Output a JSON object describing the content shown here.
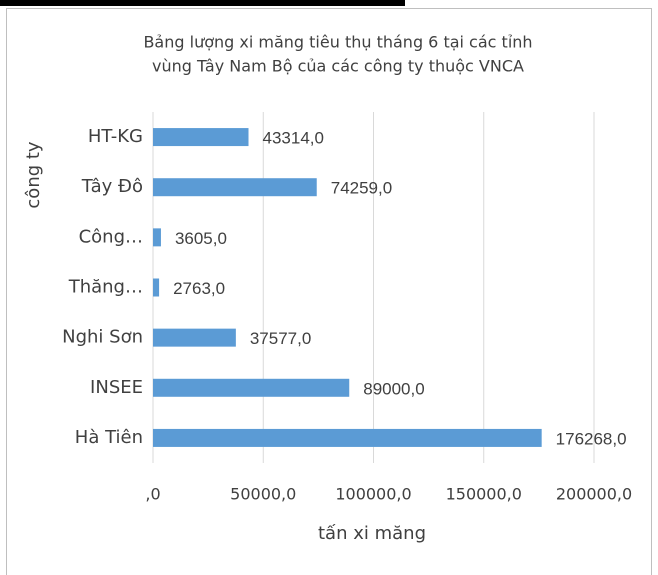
{
  "chart_data": {
    "type": "bar",
    "orientation": "horizontal",
    "title": [
      "Bảng lượng xi măng tiêu thụ tháng 6 tại các tỉnh",
      "vùng Tây Nam Bộ của các công ty thuộc VNCA"
    ],
    "y_label": "công ty",
    "x_label": "tấn xi măng",
    "categories": [
      "HT-KG",
      "Tây Đô",
      "Công…",
      "Thăng…",
      "Nghi Sơn",
      "INSEE",
      "Hà Tiên"
    ],
    "values": [
      43314,
      74259,
      3605,
      2763,
      37577,
      89000,
      176268
    ],
    "value_labels": [
      "43314,0",
      "74259,0",
      "3605,0",
      "2763,0",
      "37577,0",
      "89000,0",
      "176268,0"
    ],
    "color": "#5b9bd5",
    "xlim": [
      0,
      200000
    ],
    "xticks": [
      {
        "value": 0,
        "label": ",0"
      },
      {
        "value": 50000,
        "label": "50000,0"
      },
      {
        "value": 100000,
        "label": "100000,0"
      },
      {
        "value": 150000,
        "label": "150000,0"
      },
      {
        "value": 200000,
        "label": "200000,0"
      }
    ],
    "grid": true
  }
}
